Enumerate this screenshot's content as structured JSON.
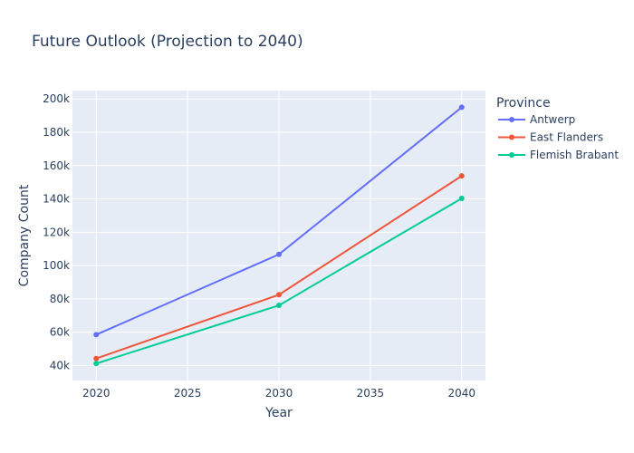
{
  "chart_data": {
    "type": "line",
    "title": "Future Outlook (Projection to 2040)",
    "xlabel": "Year",
    "ylabel": "Company Count",
    "x": [
      2020,
      2030,
      2040
    ],
    "xlim": [
      2018.7,
      2041.3
    ],
    "ylim": [
      31000,
      205000
    ],
    "xticks": [
      2020,
      2025,
      2030,
      2035,
      2040
    ],
    "yticks": [
      40000,
      60000,
      80000,
      100000,
      120000,
      140000,
      160000,
      180000,
      200000
    ],
    "ytick_labels": [
      "40k",
      "60k",
      "80k",
      "100k",
      "120k",
      "140k",
      "160k",
      "180k",
      "200k"
    ],
    "grid": true,
    "legend_title": "Province",
    "legend_position": "right",
    "series": [
      {
        "name": "Antwerp",
        "color": "#636efa",
        "values": [
          58500,
          106700,
          195000
        ]
      },
      {
        "name": "East Flanders",
        "color": "#ef553b",
        "values": [
          44200,
          82500,
          153800
        ]
      },
      {
        "name": "Flemish Brabant",
        "color": "#00cc96",
        "values": [
          41200,
          76100,
          140300
        ]
      }
    ]
  }
}
